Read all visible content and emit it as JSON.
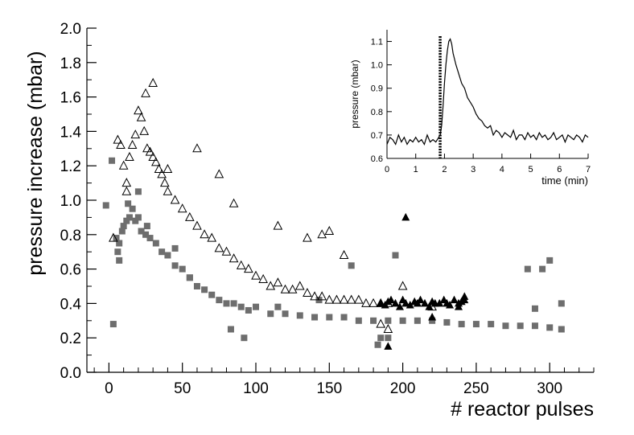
{
  "chart_data": [
    {
      "type": "scatter",
      "xlabel": "# reactor pulses",
      "ylabel": "pressure increase (mbar)",
      "xlim": [
        -15,
        330
      ],
      "ylim": [
        0,
        2.0
      ],
      "xticks": [
        0,
        50,
        100,
        150,
        200,
        250,
        300
      ],
      "yticks": [
        0.0,
        0.2,
        0.4,
        0.6,
        0.8,
        1.0,
        1.2,
        1.4,
        1.6,
        1.8,
        2.0
      ],
      "xtick_labels": [
        "0",
        "50",
        "100",
        "150",
        "200",
        "250",
        "300"
      ],
      "ytick_labels": [
        "0.0",
        "0.2",
        "0.4",
        "0.6",
        "0.8",
        "1.0",
        "1.2",
        "1.4",
        "1.6",
        "1.8",
        "2.0"
      ],
      "colors": {
        "squares": "#6e6e6e",
        "open_triangles": "#000000",
        "filled_triangles": "#000000"
      },
      "series": [
        {
          "name": "gray squares",
          "marker": "square-filled",
          "x": [
            2,
            3,
            5,
            6,
            7,
            9,
            10,
            12,
            14,
            16,
            18,
            20,
            22,
            25,
            28,
            32,
            36,
            40,
            45,
            50,
            55,
            60,
            65,
            70,
            75,
            80,
            85,
            90,
            95,
            100,
            110,
            120,
            130,
            140,
            150,
            160,
            170,
            180,
            190,
            200,
            210,
            220,
            230,
            240,
            250,
            260,
            270,
            280,
            290,
            300,
            308
          ],
          "y": [
            1.23,
            0.28,
            0.78,
            0.7,
            0.75,
            0.82,
            0.85,
            0.88,
            0.9,
            0.95,
            0.88,
            0.9,
            0.82,
            0.8,
            0.78,
            0.75,
            0.7,
            0.68,
            0.62,
            0.6,
            0.55,
            0.5,
            0.48,
            0.45,
            0.42,
            0.4,
            0.4,
            0.38,
            0.36,
            0.38,
            0.34,
            0.34,
            0.33,
            0.32,
            0.32,
            0.32,
            0.3,
            0.3,
            0.3,
            0.3,
            0.3,
            0.3,
            0.29,
            0.28,
            0.28,
            0.28,
            0.27,
            0.27,
            0.27,
            0.26,
            0.25
          ]
        },
        {
          "name": "gray squares (outliers)",
          "marker": "square-filled",
          "x": [
            -2,
            7,
            13,
            20,
            26,
            45,
            55,
            83,
            92,
            115,
            143,
            165,
            183,
            185,
            190,
            195,
            285,
            290,
            295,
            300,
            308
          ],
          "y": [
            0.97,
            0.65,
            0.98,
            1.05,
            0.85,
            0.72,
            0.55,
            0.25,
            0.2,
            0.38,
            0.42,
            0.62,
            0.16,
            0.2,
            0.2,
            0.68,
            0.6,
            0.37,
            0.6,
            0.65,
            0.4
          ]
        },
        {
          "name": "open triangles",
          "marker": "triangle-open",
          "x": [
            3,
            6,
            8,
            10,
            12,
            14,
            16,
            18,
            20,
            22,
            24,
            26,
            28,
            30,
            32,
            34,
            36,
            38,
            40,
            45,
            50,
            55,
            60,
            65,
            70,
            75,
            80,
            85,
            90,
            95,
            100,
            105,
            110,
            115,
            120,
            125,
            130,
            135,
            140,
            145,
            150,
            155,
            160,
            165,
            170,
            175,
            180,
            185,
            190
          ],
          "y": [
            0.78,
            1.35,
            1.32,
            1.2,
            1.1,
            1.25,
            1.32,
            1.38,
            1.52,
            1.48,
            1.4,
            1.3,
            1.28,
            1.25,
            1.22,
            1.18,
            1.15,
            1.1,
            1.05,
            1.0,
            0.95,
            0.9,
            0.85,
            0.8,
            0.78,
            0.72,
            0.7,
            0.66,
            0.62,
            0.6,
            0.56,
            0.54,
            0.5,
            0.52,
            0.48,
            0.48,
            0.5,
            0.46,
            0.44,
            0.44,
            0.42,
            0.42,
            0.42,
            0.42,
            0.42,
            0.4,
            0.4,
            0.4,
            0.4
          ]
        },
        {
          "name": "open triangles (outliers)",
          "marker": "triangle-open",
          "x": [
            12,
            25,
            30,
            40,
            60,
            75,
            85,
            115,
            135,
            145,
            150,
            160,
            185,
            190,
            200,
            220
          ],
          "y": [
            1.05,
            1.62,
            1.68,
            1.18,
            1.3,
            1.15,
            0.98,
            0.85,
            0.78,
            0.8,
            0.82,
            0.68,
            0.28,
            0.25,
            0.5,
            0.38
          ]
        },
        {
          "name": "filled triangles",
          "marker": "triangle-filled",
          "x": [
            185,
            188,
            190,
            192,
            195,
            198,
            200,
            202,
            205,
            208,
            210,
            212,
            215,
            218,
            220,
            222,
            225,
            228,
            230,
            232,
            235,
            238,
            240,
            242
          ],
          "y": [
            0.4,
            0.39,
            0.41,
            0.42,
            0.4,
            0.38,
            0.42,
            0.4,
            0.39,
            0.41,
            0.4,
            0.42,
            0.4,
            0.38,
            0.41,
            0.4,
            0.4,
            0.42,
            0.4,
            0.39,
            0.42,
            0.4,
            0.41,
            0.42
          ]
        },
        {
          "name": "filled triangles (outliers)",
          "marker": "triangle-filled",
          "x": [
            190,
            202,
            220,
            238,
            242
          ],
          "y": [
            0.15,
            0.9,
            0.32,
            0.38,
            0.44
          ]
        }
      ]
    },
    {
      "type": "line",
      "inset": true,
      "xlabel": "time (min)",
      "ylabel": "pressure (mbar)",
      "xlim": [
        0,
        7
      ],
      "ylim": [
        0.6,
        1.15
      ],
      "xticks": [
        0,
        1,
        2,
        3,
        4,
        5,
        6,
        7
      ],
      "yticks": [
        0.6,
        0.7,
        0.8,
        0.9,
        1.0,
        1.1
      ],
      "xtick_labels": [
        "0",
        "1",
        "2",
        "3",
        "4",
        "5",
        "6",
        "7"
      ],
      "ytick_labels": [
        "0.6",
        "0.7",
        "0.8",
        "0.9",
        "1.0",
        "1.1"
      ],
      "marker_line_x": 1.85,
      "series": [
        {
          "name": "pressure trace",
          "x": [
            0,
            0.1,
            0.2,
            0.3,
            0.4,
            0.5,
            0.6,
            0.7,
            0.8,
            0.9,
            1.0,
            1.1,
            1.2,
            1.3,
            1.4,
            1.5,
            1.6,
            1.7,
            1.8,
            1.85,
            1.9,
            1.95,
            2.0,
            2.05,
            2.1,
            2.15,
            2.2,
            2.25,
            2.3,
            2.4,
            2.5,
            2.6,
            2.7,
            2.8,
            2.9,
            3.0,
            3.1,
            3.2,
            3.3,
            3.4,
            3.5,
            3.6,
            3.7,
            3.8,
            3.9,
            4.0,
            4.1,
            4.2,
            4.3,
            4.4,
            4.5,
            4.6,
            4.7,
            4.8,
            4.9,
            5.0,
            5.1,
            5.2,
            5.3,
            5.4,
            5.5,
            5.6,
            5.7,
            5.8,
            5.9,
            6.0,
            6.1,
            6.2,
            6.3,
            6.4,
            6.5,
            6.6,
            6.7,
            6.8,
            6.9,
            7.0
          ],
          "y": [
            0.66,
            0.69,
            0.68,
            0.66,
            0.7,
            0.67,
            0.69,
            0.66,
            0.68,
            0.67,
            0.69,
            0.67,
            0.68,
            0.66,
            0.7,
            0.67,
            0.68,
            0.67,
            0.69,
            0.7,
            0.74,
            0.82,
            0.92,
            1.0,
            1.06,
            1.1,
            1.11,
            1.09,
            1.05,
            1.0,
            0.96,
            0.92,
            0.9,
            0.86,
            0.84,
            0.82,
            0.79,
            0.77,
            0.76,
            0.74,
            0.73,
            0.74,
            0.7,
            0.72,
            0.71,
            0.69,
            0.71,
            0.7,
            0.69,
            0.72,
            0.68,
            0.7,
            0.7,
            0.68,
            0.71,
            0.69,
            0.7,
            0.68,
            0.71,
            0.69,
            0.7,
            0.68,
            0.69,
            0.71,
            0.68,
            0.69,
            0.7,
            0.67,
            0.7,
            0.69,
            0.68,
            0.7,
            0.69,
            0.67,
            0.7,
            0.69
          ]
        }
      ]
    }
  ]
}
